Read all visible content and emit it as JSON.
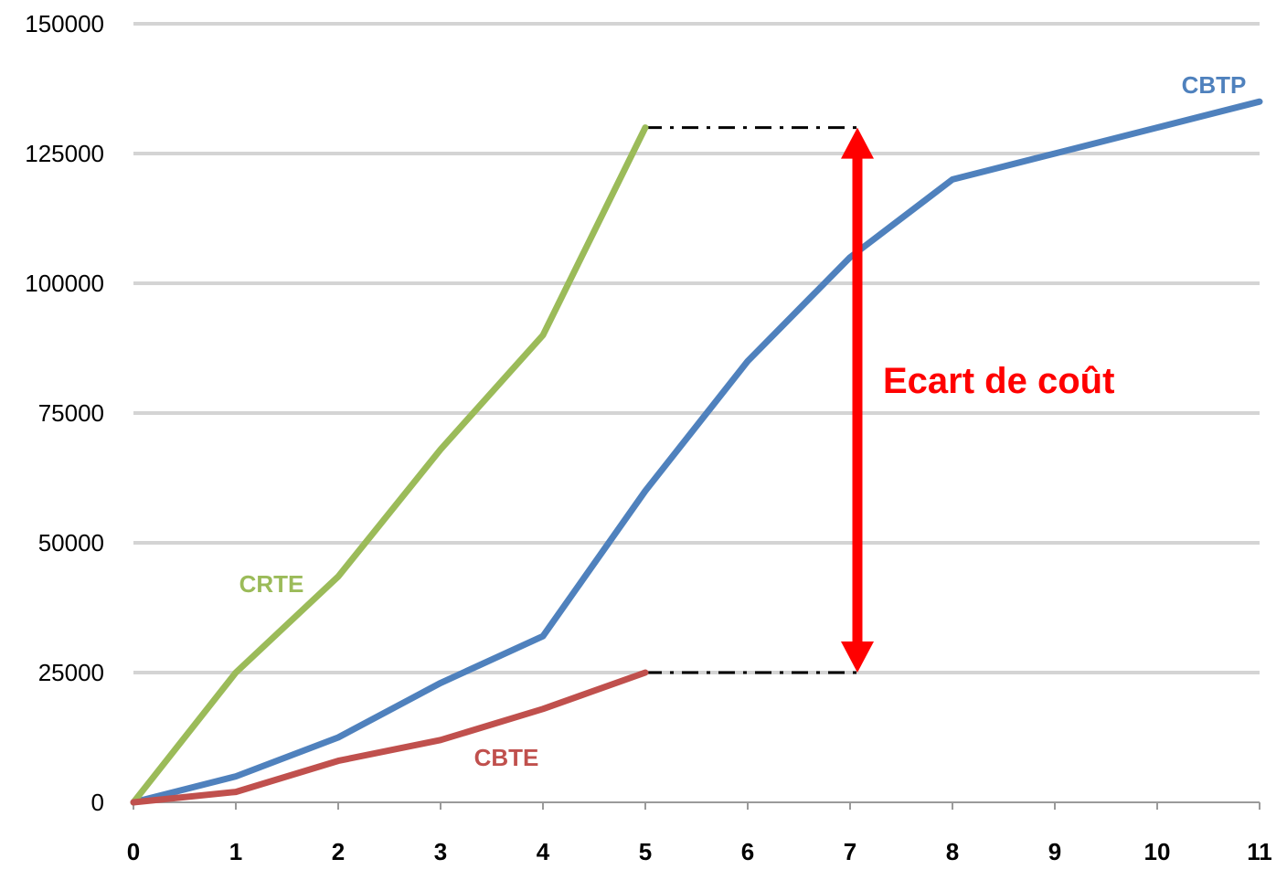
{
  "chart_data": {
    "type": "line",
    "x": [
      0,
      1,
      2,
      3,
      4,
      5,
      6,
      7,
      8,
      9,
      10,
      11
    ],
    "xlim": [
      0,
      11
    ],
    "ylim": [
      0,
      150000
    ],
    "yticks": [
      0,
      25000,
      50000,
      75000,
      100000,
      125000,
      150000
    ],
    "grid": true,
    "series": [
      {
        "name": "CBTP",
        "color": "#4f81bd",
        "x": [
          0,
          1,
          2,
          3,
          4,
          5,
          6,
          7,
          8,
          9,
          10,
          11
        ],
        "values": [
          0,
          5000,
          12500,
          23000,
          32000,
          60000,
          85000,
          105000,
          120000,
          125000,
          130000,
          135000
        ]
      },
      {
        "name": "CRTE",
        "color": "#9bbb59",
        "x": [
          0,
          1,
          2,
          3,
          4,
          5
        ],
        "values": [
          0,
          25000,
          43500,
          68000,
          90000,
          130000
        ]
      },
      {
        "name": "CBTE",
        "color": "#c0504d",
        "x": [
          0,
          1,
          2,
          3,
          4,
          5
        ],
        "values": [
          0,
          2000,
          8000,
          12000,
          18000,
          25000
        ]
      }
    ],
    "annotation": {
      "text": "Ecart de coût",
      "color": "#ff0000",
      "arrow_x": 7,
      "arrow_from": 25000,
      "arrow_to": 130000,
      "guide_from_x": 5
    }
  }
}
